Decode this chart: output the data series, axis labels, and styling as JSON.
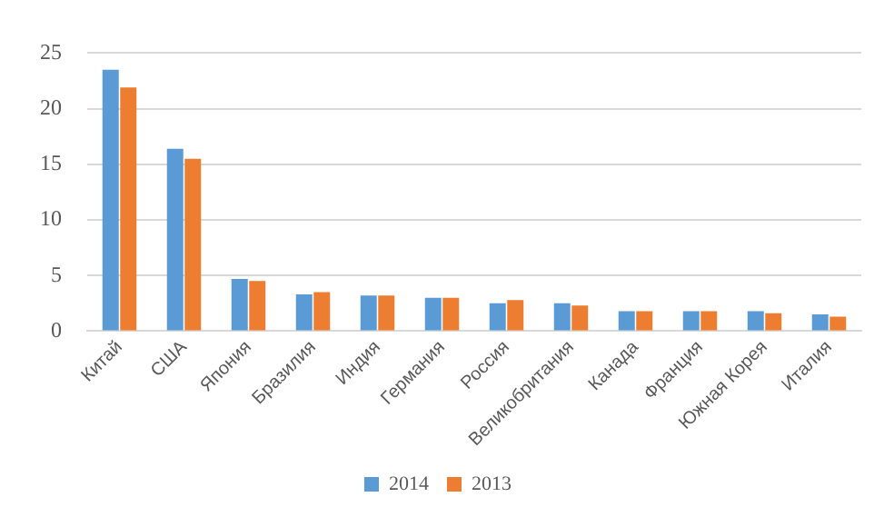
{
  "chart_data": {
    "type": "bar",
    "categories": [
      "Китай",
      "США",
      "Япония",
      "Бразилия",
      "Индия",
      "Германия",
      "Россия",
      "Великобритания",
      "Канада",
      "Франция",
      "Южная Корея",
      "Италия"
    ],
    "series": [
      {
        "name": "2014",
        "color": "#5b9bd5",
        "values": [
          23.5,
          16.4,
          4.7,
          3.3,
          3.2,
          3.0,
          2.5,
          2.5,
          1.8,
          1.8,
          1.8,
          1.5
        ]
      },
      {
        "name": "2013",
        "color": "#ed7d31",
        "values": [
          21.9,
          15.5,
          4.5,
          3.5,
          3.2,
          3.0,
          2.8,
          2.3,
          1.8,
          1.8,
          1.6,
          1.3
        ]
      }
    ],
    "ylim": [
      0,
      25
    ],
    "yticks": [
      0,
      5,
      10,
      15,
      20,
      25
    ],
    "grid": "y",
    "legend": "bottom"
  }
}
